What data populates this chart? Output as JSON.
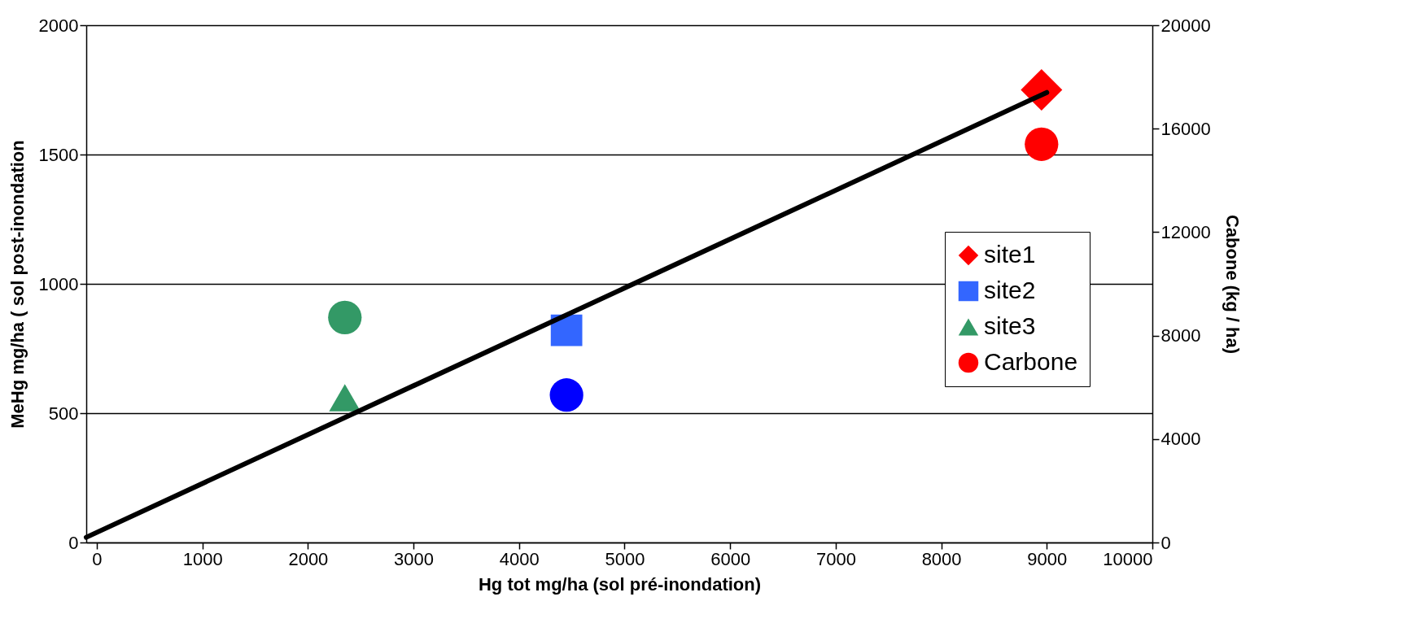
{
  "chart_data": {
    "type": "scatter",
    "xlabel": "Hg tot mg/ha (sol pré-inondation)",
    "ylabel": "MeHg mg/ha ( sol post-inondation",
    "y2label": "Cabone (kg / ha)",
    "xlim": [
      -100,
      10000
    ],
    "xticks": [
      0,
      1000,
      2000,
      3000,
      4000,
      5000,
      6000,
      7000,
      8000,
      9000,
      10000
    ],
    "ylim": [
      0,
      2000
    ],
    "yticks": [
      0,
      500,
      1000,
      1500,
      2000
    ],
    "y2lim": [
      0,
      20000
    ],
    "y2ticks": [
      0,
      4000,
      8000,
      12000,
      16000,
      20000
    ],
    "grid": "y",
    "legend": "right",
    "series": [
      {
        "name": "site1",
        "color": "#ff0000",
        "marker": "diamond",
        "x": [
          8950
        ],
        "values": [
          1750
        ]
      },
      {
        "name": "site2",
        "color": "#3366ff",
        "marker": "square",
        "x": [
          4450
        ],
        "values": [
          820
        ]
      },
      {
        "name": "site3",
        "color": "#339966",
        "marker": "triangle",
        "x": [
          2350
        ],
        "values": [
          560
        ]
      },
      {
        "name": "Carbone",
        "color": "#ff0000",
        "colors": [
          "#339966",
          "#0000ff",
          "#ff0000"
        ],
        "marker": "circle",
        "axis": "y2",
        "x": [
          2350,
          4450,
          8950
        ],
        "values": [
          8700,
          5700,
          15400
        ]
      },
      {
        "type": "line",
        "color": "#000000",
        "marker": "none",
        "line_style": "solid",
        "x": [
          -100,
          9000
        ],
        "values": [
          20,
          1740
        ]
      }
    ]
  }
}
